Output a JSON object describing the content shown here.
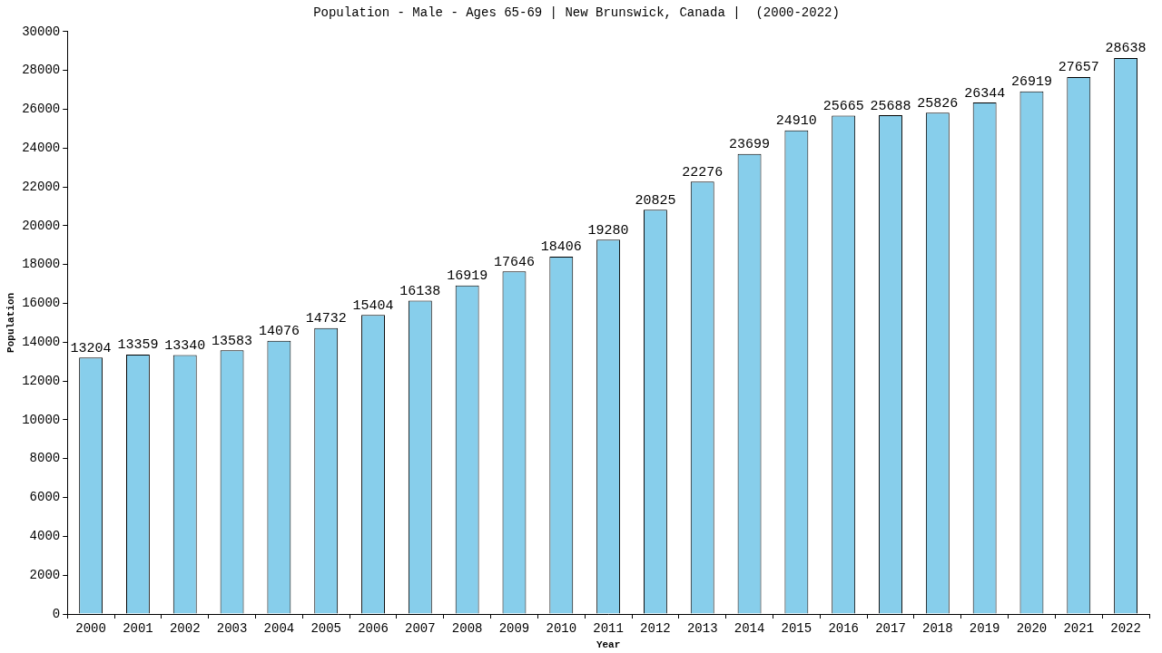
{
  "chart_data": {
    "type": "bar",
    "title": "Population - Male - Ages 65-69 | New Brunswick, Canada |  (2000-2022)",
    "x_label": "Year",
    "y_label": "Population",
    "categories": [
      "2000",
      "2001",
      "2002",
      "2003",
      "2004",
      "2005",
      "2006",
      "2007",
      "2008",
      "2009",
      "2010",
      "2011",
      "2012",
      "2013",
      "2014",
      "2015",
      "2016",
      "2017",
      "2018",
      "2019",
      "2020",
      "2021",
      "2022"
    ],
    "values": [
      13204,
      13359,
      13340,
      13583,
      14076,
      14732,
      15404,
      16138,
      16919,
      17646,
      18406,
      19280,
      20825,
      22276,
      23699,
      24910,
      25665,
      25688,
      25826,
      26344,
      26919,
      27657,
      28638
    ],
    "color": "#87ceeb",
    "ylim": [
      0,
      30000
    ],
    "yticks": [
      0,
      2000,
      4000,
      6000,
      8000,
      10000,
      12000,
      14000,
      16000,
      18000,
      20000,
      22000,
      24000,
      26000,
      28000,
      30000
    ],
    "grid": false,
    "data_labels": true
  }
}
